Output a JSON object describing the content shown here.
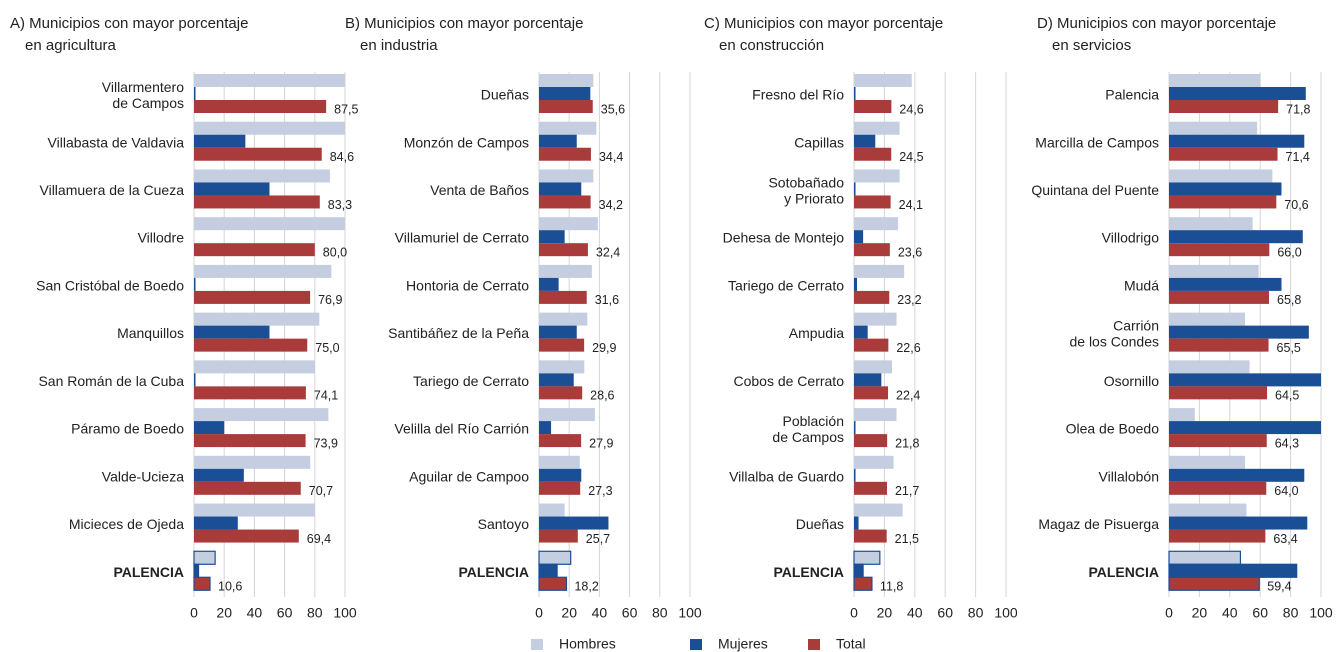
{
  "chart_data": [
    {
      "type": "bar",
      "orientation": "horizontal",
      "title": [
        "A) Municipios con mayor porcentaje",
        "en agricultura"
      ],
      "categories": [
        "Villarmentero\nde Campos",
        "Villabasta de Valdavia",
        "Villamuera de la Cueza",
        "Villodre",
        "San Cristóbal de Boedo",
        "Manquillos",
        "San Román de la Cuba",
        "Páramo de Boedo",
        "Valde-Ucieza",
        "Micieces de Ojeda",
        "PALENCIA"
      ],
      "series": [
        {
          "name": "Hombres",
          "color": "#c5cde0",
          "values": [
            100,
            100,
            90,
            100,
            91,
            83,
            80,
            89,
            77,
            80,
            14
          ]
        },
        {
          "name": "Mujeres",
          "color": "#1a4f96",
          "values": [
            1,
            34,
            50,
            0,
            1,
            50,
            1,
            20,
            33,
            29,
            3
          ]
        },
        {
          "name": "Total",
          "color": "#a93c3a",
          "values": [
            87.5,
            84.6,
            83.3,
            80.0,
            76.9,
            75.0,
            74.1,
            73.9,
            70.7,
            69.4,
            10.6
          ],
          "value_labels": [
            "87,5",
            "84,6",
            "83,3",
            "80,0",
            "76,9",
            "75,0",
            "74,1",
            "73,9",
            "70,7",
            "69,4",
            "10,6"
          ]
        }
      ],
      "xlim": [
        0,
        100
      ],
      "xticks": [
        0,
        20,
        40,
        60,
        80,
        100
      ],
      "grid": true
    },
    {
      "type": "bar",
      "orientation": "horizontal",
      "title": [
        "B) Municipios con mayor porcentaje",
        "en industria"
      ],
      "categories": [
        "Dueñas",
        "Monzón de Campos",
        "Venta de Baños",
        "Villamuriel de Cerrato",
        "Hontoria de Cerrato",
        "Santibáñez de la Peña",
        "Tariego de Cerrato",
        "Velilla del Río Carrión",
        "Aguilar de Campoo",
        "Santoyo",
        "PALENCIA"
      ],
      "series": [
        {
          "name": "Hombres",
          "color": "#c5cde0",
          "values": [
            36,
            38,
            36,
            39,
            35,
            32,
            30,
            37,
            27,
            17,
            21
          ]
        },
        {
          "name": "Mujeres",
          "color": "#1a4f96",
          "values": [
            34,
            25,
            28,
            17,
            13,
            25,
            23,
            8,
            28,
            46,
            12
          ]
        },
        {
          "name": "Total",
          "color": "#a93c3a",
          "values": [
            35.6,
            34.4,
            34.2,
            32.4,
            31.6,
            29.9,
            28.6,
            27.9,
            27.3,
            25.7,
            18.2
          ],
          "value_labels": [
            "35,6",
            "34,4",
            "34,2",
            "32,4",
            "31,6",
            "29,9",
            "28,6",
            "27,9",
            "27,3",
            "25,7",
            "18,2"
          ]
        }
      ],
      "xlim": [
        0,
        100
      ],
      "xticks": [
        0,
        20,
        40,
        60,
        80,
        100
      ],
      "grid": true
    },
    {
      "type": "bar",
      "orientation": "horizontal",
      "title": [
        "C) Municipios con mayor porcentaje",
        "en construcción"
      ],
      "categories": [
        "Fresno del Río",
        "Capillas",
        "Sotobañado\ny Priorato",
        "Dehesa de Montejo",
        "Tariego de Cerrato",
        "Ampudia",
        "Cobos de Cerrato",
        "Población\nde Campos",
        "Villalba de Guardo",
        "Dueñas",
        "PALENCIA"
      ],
      "series": [
        {
          "name": "Hombres",
          "color": "#c5cde0",
          "values": [
            38,
            30,
            30,
            29,
            33,
            28,
            25,
            28,
            26,
            32,
            17
          ]
        },
        {
          "name": "Mujeres",
          "color": "#1a4f96",
          "values": [
            1,
            14,
            1,
            6,
            2,
            9,
            18,
            1,
            1,
            3,
            6
          ]
        },
        {
          "name": "Total",
          "color": "#a93c3a",
          "values": [
            24.6,
            24.5,
            24.1,
            23.6,
            23.2,
            22.6,
            22.4,
            21.8,
            21.7,
            21.5,
            11.8
          ],
          "value_labels": [
            "24,6",
            "24,5",
            "24,1",
            "23,6",
            "23,2",
            "22,6",
            "22,4",
            "21,8",
            "21,7",
            "21,5",
            "11,8"
          ]
        }
      ],
      "xlim": [
        0,
        100
      ],
      "xticks": [
        0,
        20,
        40,
        60,
        80,
        100
      ],
      "grid": true
    },
    {
      "type": "bar",
      "orientation": "horizontal",
      "title": [
        "D) Municipios con mayor porcentaje",
        "en servicios"
      ],
      "categories": [
        "Palencia",
        "Marcilla de Campos",
        "Quintana del Puente",
        "Villodrigo",
        "Mudá",
        "Carrión\nde los Condes",
        "Osornillo",
        "Olea de Boedo",
        "Villalobón",
        "Magaz de Pisuerga",
        "PALENCIA"
      ],
      "series": [
        {
          "name": "Hombres",
          "color": "#c5cde0",
          "values": [
            60,
            58,
            68,
            55,
            59,
            50,
            53,
            17,
            50,
            51,
            47
          ]
        },
        {
          "name": "Mujeres",
          "color": "#1a4f96",
          "values": [
            90,
            89,
            74,
            88,
            74,
            92,
            100,
            100,
            89,
            91,
            84
          ]
        },
        {
          "name": "Total",
          "color": "#a93c3a",
          "values": [
            71.8,
            71.4,
            70.6,
            66.0,
            65.8,
            65.5,
            64.5,
            64.3,
            64.0,
            63.4,
            59.4
          ],
          "value_labels": [
            "71,8",
            "71,4",
            "70,6",
            "66,0",
            "65,8",
            "65,5",
            "64,5",
            "64,3",
            "64,0",
            "63,4",
            "59,4"
          ]
        }
      ],
      "xlim": [
        0,
        100
      ],
      "xticks": [
        0,
        20,
        40,
        60,
        80,
        100
      ],
      "grid": true
    }
  ]
}
